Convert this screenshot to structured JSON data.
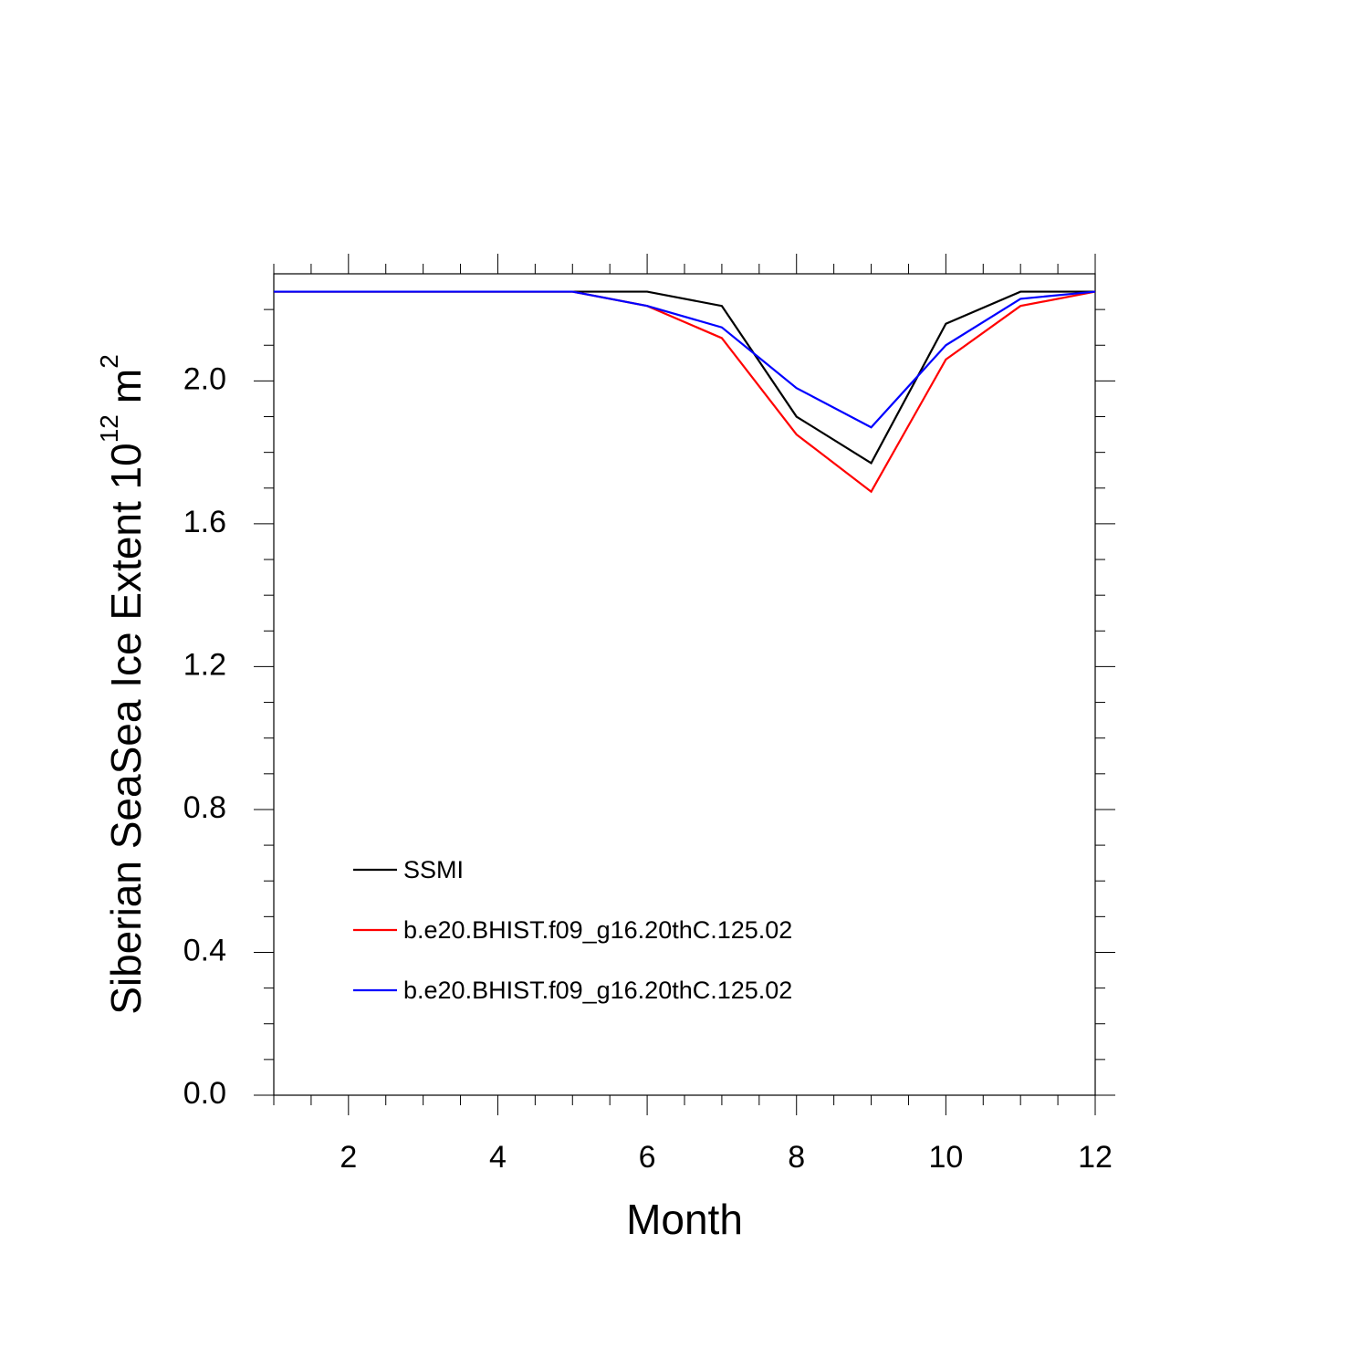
{
  "chart_data": {
    "type": "line",
    "ylabel": [
      "Siberian SeaSea Ice Extent 10",
      "12",
      "m",
      "2"
    ],
    "xlabel": "Month",
    "x": [
      1,
      2,
      3,
      4,
      5,
      6,
      7,
      8,
      9,
      10,
      11,
      12
    ],
    "series": [
      {
        "name": "SSMI",
        "color": "#000000",
        "values": [
          2.25,
          2.25,
          2.25,
          2.25,
          2.25,
          2.25,
          2.21,
          1.9,
          1.77,
          2.16,
          2.25,
          2.25
        ]
      },
      {
        "name": "b.e20.BHIST.f09_g16.20thC.125.02",
        "color": "#ff0000",
        "values": [
          2.25,
          2.25,
          2.25,
          2.25,
          2.25,
          2.21,
          2.12,
          1.85,
          1.69,
          2.06,
          2.21,
          2.25
        ]
      },
      {
        "name": "b.e20.BHIST.f09_g16.20thC.125.02",
        "color": "#0000ff",
        "values": [
          2.25,
          2.25,
          2.25,
          2.25,
          2.25,
          2.21,
          2.15,
          1.98,
          1.87,
          2.1,
          2.23,
          2.25
        ]
      }
    ],
    "xlim": [
      1,
      12
    ],
    "xticks": [
      2,
      4,
      6,
      8,
      10,
      12
    ],
    "xminorticks": [
      1,
      1.5,
      2.5,
      3,
      3.5,
      4.5,
      5,
      5.5,
      6.5,
      7,
      7.5,
      8.5,
      9,
      9.5,
      10.5,
      11,
      11.5
    ],
    "ylim": [
      0,
      2.3
    ],
    "yticks": [
      {
        "value": 0,
        "label": "0.0"
      },
      0.4,
      0.8,
      1.2,
      1.6,
      {
        "value": 2,
        "label": "2.0"
      }
    ],
    "yminorticks": [
      0.1,
      0.2,
      0.3,
      0.5,
      0.6,
      0.7,
      0.9,
      1.0,
      1.1,
      1.3,
      1.4,
      1.5,
      1.7,
      1.8,
      1.9,
      2.1,
      2.2
    ],
    "grid": false,
    "legend": "lower left"
  }
}
